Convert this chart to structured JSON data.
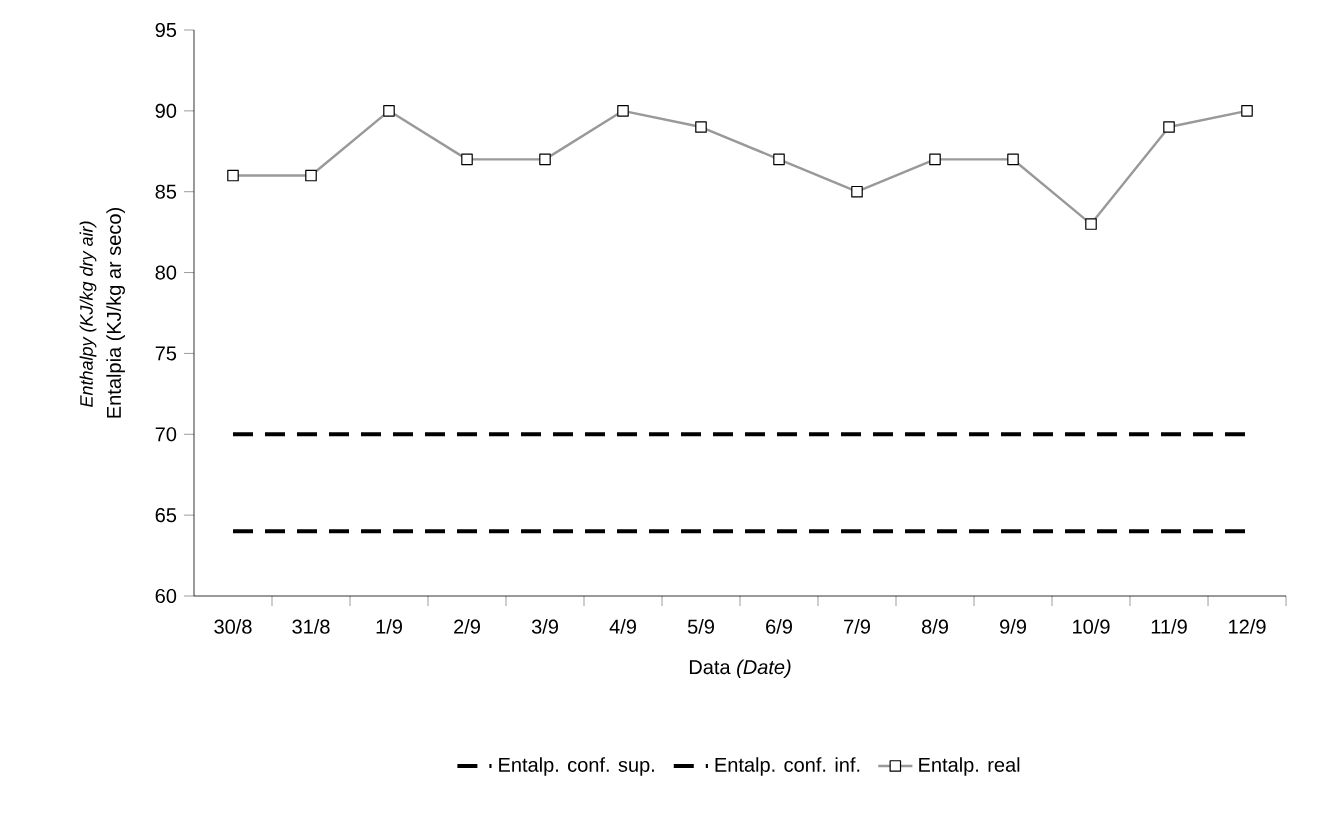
{
  "chart_data": {
    "type": "line",
    "xlabel": "Data *(Date)*",
    "ylabel": "Entalpia (KJ/kg ar seco)",
    "annotations": [
      "Enthalpy (KJ/kg dry air)"
    ],
    "categories": [
      "30/8",
      "31/8",
      "1/9",
      "2/9",
      "3/9",
      "4/9",
      "5/9",
      "6/9",
      "7/9",
      "8/9",
      "9/9",
      "10/9",
      "11/9",
      "12/9"
    ],
    "series": [
      {
        "name": "Entalp. conf. sup.",
        "color": "#000000",
        "line_style": "dashed",
        "marker": "none",
        "values": [
          70,
          70,
          70,
          70,
          70,
          70,
          70,
          70,
          70,
          70,
          70,
          70,
          70,
          70
        ]
      },
      {
        "name": "Entalp. conf. inf.",
        "color": "#000000",
        "line_style": "dashed",
        "marker": "none",
        "values": [
          64,
          64,
          64,
          64,
          64,
          64,
          64,
          64,
          64,
          64,
          64,
          64,
          64,
          64
        ]
      },
      {
        "name": "Entalp. real",
        "color": "#999999",
        "line_style": "solid",
        "marker": "square",
        "values": [
          86,
          86,
          90,
          87,
          87,
          90,
          89,
          87,
          85,
          87,
          87,
          83,
          89,
          90
        ]
      }
    ],
    "ylim": [
      60,
      95
    ],
    "yticks": [
      60,
      65,
      70,
      75,
      80,
      85,
      90,
      95
    ],
    "grid": false,
    "legend": "bottom"
  }
}
